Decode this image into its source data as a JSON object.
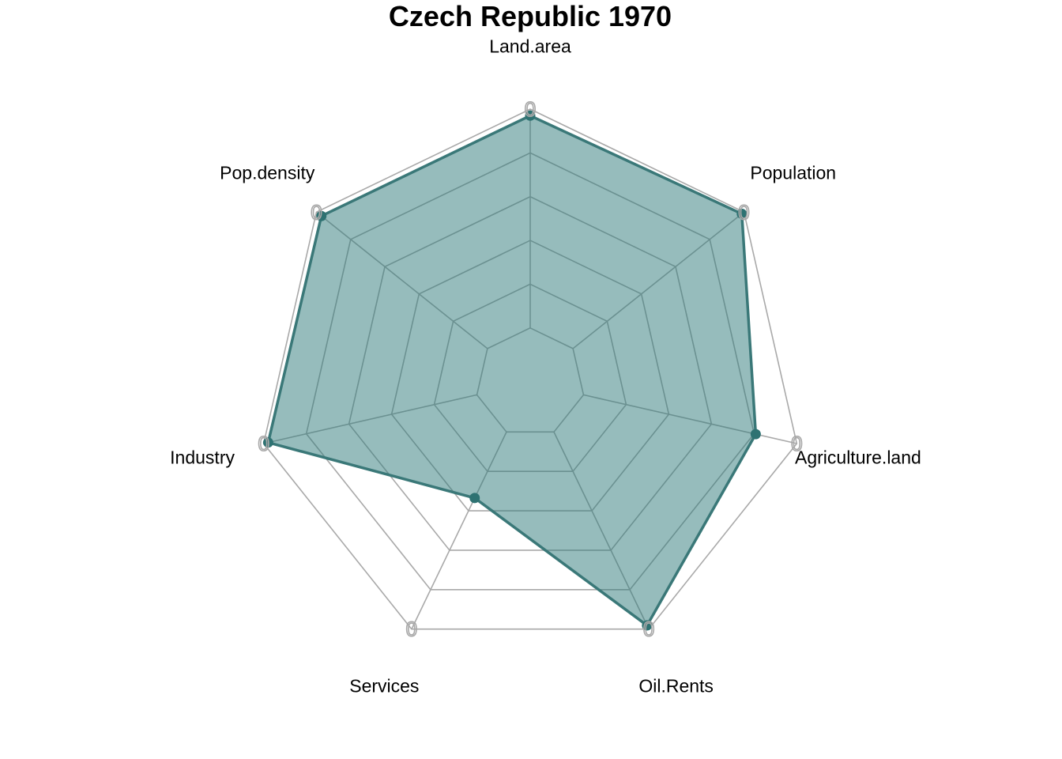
{
  "chart_data": {
    "type": "radar",
    "title": "Czech Republic 1970",
    "axes": [
      "Land.area",
      "Population",
      "Agriculture.land",
      "Oil.Rents",
      "Services",
      "Industry",
      "Pop.density"
    ],
    "series": [
      {
        "values": [
          0.976,
          0.99,
          0.846,
          0.985,
          0.468,
          0.983,
          0.977
        ]
      }
    ],
    "range": [
      0,
      1
    ],
    "grid_levels": 6,
    "axis_cap_labels": [
      "0",
      "0",
      "0",
      "0",
      "0",
      "0",
      "0"
    ],
    "colors": {
      "fill": "#2e7a7a",
      "fill_opacity": 0.5,
      "line": "#3a7878",
      "point": "#2e7272",
      "grid": "#a9a9a9"
    }
  }
}
